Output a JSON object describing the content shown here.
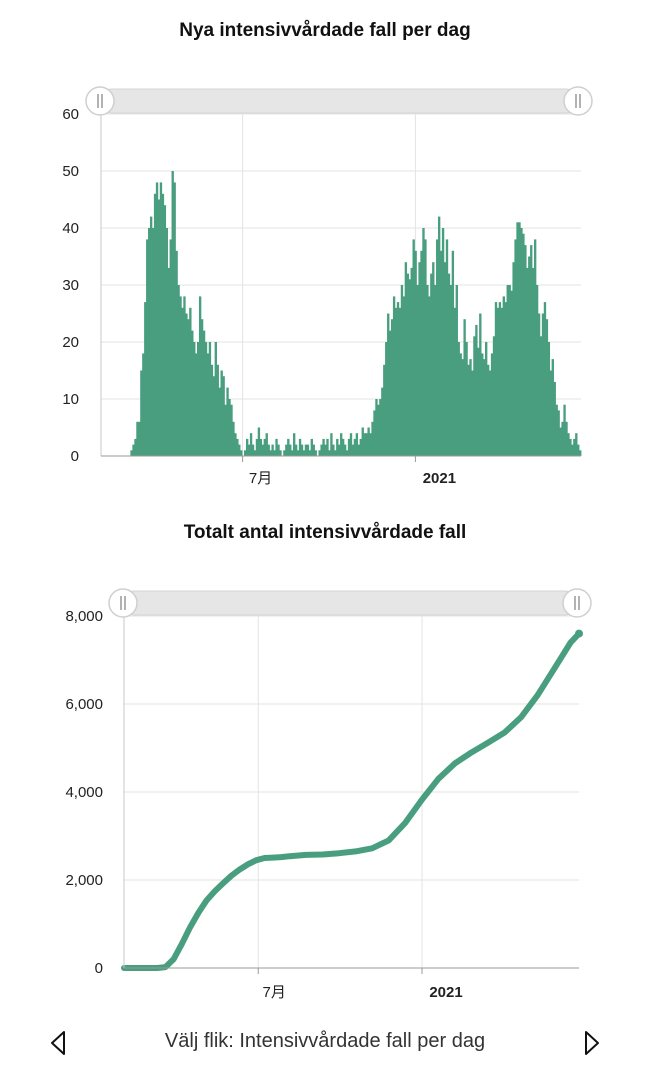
{
  "accent_color": "#4a9e80",
  "charts": {
    "daily": {
      "title": "Nya intensivvårdade fall per dag",
      "y_ticks": [
        "0",
        "10",
        "20",
        "30",
        "40",
        "50",
        "60"
      ],
      "x_ticks": [
        {
          "label": "7月",
          "bold": false
        },
        {
          "label": "2021",
          "bold": true
        }
      ]
    },
    "total": {
      "title": "Totalt antal intensivvårdade fall",
      "y_ticks": [
        "0",
        "2,000",
        "4,000",
        "6,000",
        "8,000"
      ],
      "x_ticks": [
        {
          "label": "7月",
          "bold": false
        },
        {
          "label": "2021",
          "bold": true
        }
      ]
    }
  },
  "chart_data": [
    {
      "type": "bar",
      "title": "Nya intensivvårdade fall per dag",
      "x_unit": "days since start of period",
      "ylim": [
        0,
        60
      ],
      "grid": true,
      "values": [
        0,
        0,
        0,
        0,
        0,
        0,
        0,
        0,
        0,
        0,
        0,
        0,
        0,
        0,
        0,
        1,
        2,
        3,
        6,
        6,
        15,
        18,
        27,
        38,
        40,
        42,
        40,
        46,
        48,
        45,
        48,
        46,
        44,
        40,
        33,
        38,
        50,
        48,
        36,
        30,
        28,
        26,
        28,
        25,
        24,
        26,
        22,
        20,
        18,
        20,
        28,
        24,
        22,
        20,
        18,
        20,
        16,
        14,
        20,
        16,
        12,
        15,
        14,
        9,
        12,
        10,
        9,
        6,
        4,
        3,
        2,
        1,
        0,
        1,
        3,
        2,
        4,
        2,
        1,
        3,
        5,
        3,
        2,
        3,
        4,
        2,
        1,
        2,
        1,
        3,
        2,
        1,
        0,
        1,
        2,
        3,
        2,
        1,
        4,
        2,
        1,
        3,
        2,
        1,
        2,
        2,
        1,
        3,
        2,
        1,
        0,
        1,
        2,
        3,
        2,
        3,
        1,
        4,
        2,
        1,
        3,
        2,
        4,
        3,
        2,
        1,
        3,
        4,
        2,
        3,
        4,
        2,
        3,
        5,
        4,
        4,
        5,
        4,
        6,
        8,
        10,
        9,
        10,
        12,
        16,
        20,
        25,
        22,
        24,
        28,
        26,
        27,
        26,
        30,
        28,
        34,
        32,
        31,
        33,
        38,
        36,
        30,
        34,
        36,
        40,
        38,
        30,
        28,
        32,
        34,
        30,
        38,
        42,
        36,
        40,
        34,
        38,
        32,
        30,
        36,
        26,
        30,
        20,
        18,
        17,
        24,
        20,
        16,
        17,
        15,
        21,
        23,
        19,
        25,
        18,
        17,
        20,
        16,
        15,
        18,
        21,
        27,
        26,
        27,
        26,
        28,
        27,
        30,
        30,
        29,
        34,
        38,
        41,
        41,
        40,
        39,
        37,
        33,
        35,
        37,
        33,
        38,
        30,
        25,
        21,
        25,
        27,
        24,
        20,
        15,
        17,
        13,
        9,
        8,
        5,
        6,
        9,
        6,
        4,
        3,
        2,
        3,
        4,
        2,
        1
      ]
    },
    {
      "type": "line",
      "title": "Totalt antal intensivvårdade fall",
      "x_unit": "days since start of period",
      "ylim": [
        0,
        8000
      ],
      "grid": true,
      "x": [
        0,
        20,
        25,
        30,
        35,
        40,
        45,
        50,
        55,
        60,
        65,
        70,
        75,
        80,
        85,
        90,
        95,
        100,
        110,
        120,
        130,
        140,
        150,
        160,
        165,
        170,
        175,
        180,
        190,
        200,
        210,
        220,
        230,
        240,
        250,
        260,
        270,
        275
      ],
      "y": [
        0,
        0,
        20,
        200,
        550,
        930,
        1260,
        1540,
        1750,
        1930,
        2100,
        2240,
        2360,
        2450,
        2500,
        2510,
        2520,
        2540,
        2570,
        2580,
        2610,
        2650,
        2720,
        2900,
        3100,
        3300,
        3560,
        3820,
        4300,
        4650,
        4900,
        5120,
        5350,
        5700,
        6200,
        6800,
        7400,
        7600
      ]
    }
  ]
}
